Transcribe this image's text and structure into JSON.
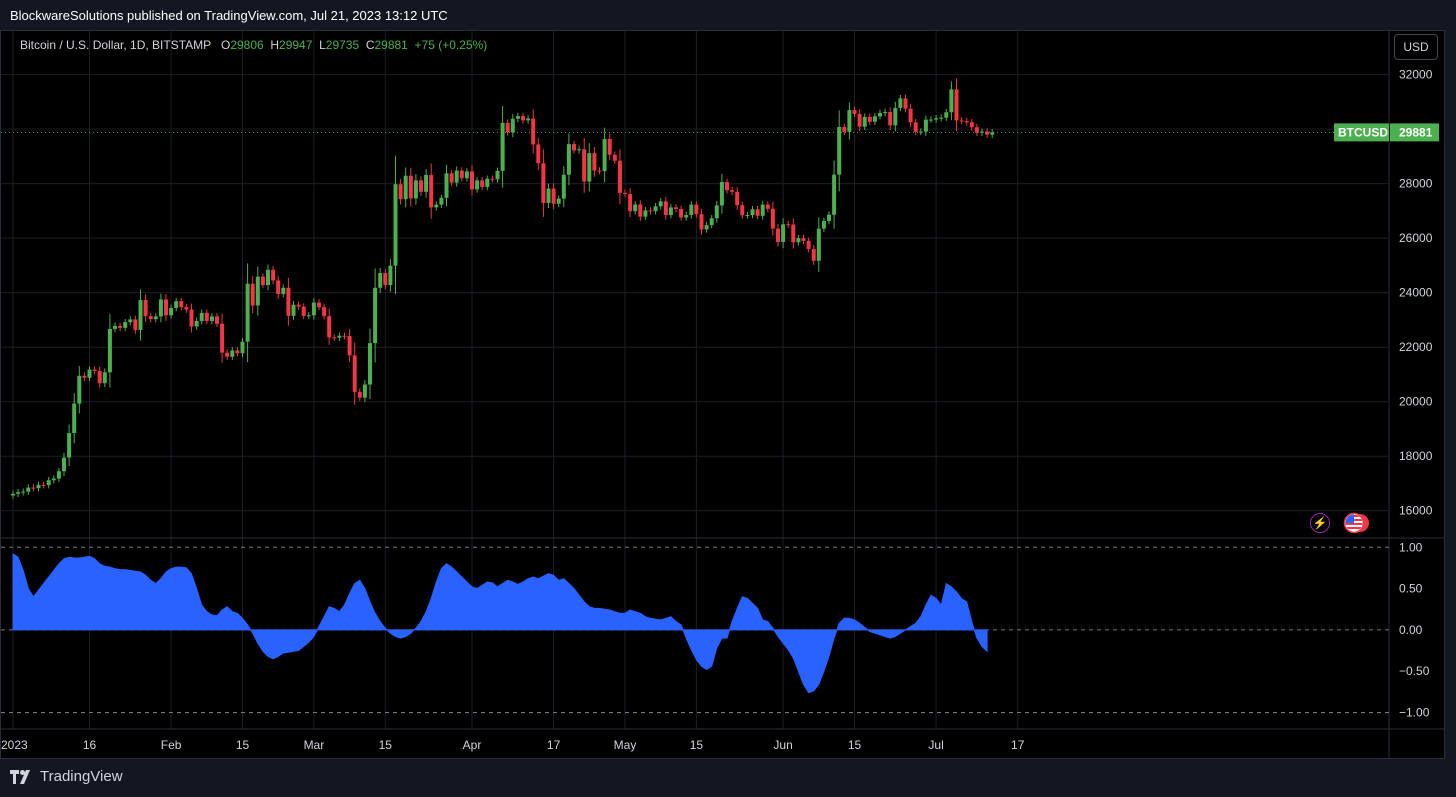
{
  "header": {
    "publisher": "BlockwareSolutions published on TradingView.com, Jul 21, 2023 13:12 UTC"
  },
  "legend": {
    "symbol": "Bitcoin / U.S. Dollar, 1D, BITSTAMP",
    "o_label": "O",
    "o_value": "29806",
    "h_label": "H",
    "h_value": "29947",
    "l_label": "L",
    "l_value": "29735",
    "c_label": "C",
    "c_value": "29881",
    "change": "+75 (+0.25%)"
  },
  "toolbar": {
    "currency": "USD"
  },
  "price_tag": {
    "ticker": "BTCUSD",
    "value": "29881"
  },
  "footer": {
    "brand": "TradingView"
  },
  "colors": {
    "up": "#4caf50",
    "down": "#f23645",
    "oscillator": "#2962ff",
    "grid": "#1c1f26",
    "axis_text": "#d1d4dc"
  },
  "icons": [
    "lightning-icon",
    "us-flag-icon",
    "tradingview-logo-icon"
  ],
  "chart_data": [
    {
      "type": "candlestick",
      "symbol": "BTCUSD",
      "interval": "1D",
      "y_ticks": [
        16000,
        18000,
        20000,
        22000,
        24000,
        26000,
        28000,
        30000,
        32000
      ],
      "y_tick_labels": [
        "16000",
        "18000",
        "20000",
        "22000",
        "24000",
        "26000",
        "28000",
        "30000",
        "32000"
      ],
      "ylim": [
        15000,
        32500
      ],
      "x_tick_labels": [
        "2023",
        "16",
        "Feb",
        "15",
        "Mar",
        "15",
        "Apr",
        "17",
        "May",
        "15",
        "Jun",
        "15",
        "Jul",
        "17"
      ],
      "x_tick_dates": [
        "2023-01-01",
        "2023-01-16",
        "2023-02-01",
        "2023-02-15",
        "2023-03-01",
        "2023-03-15",
        "2023-04-01",
        "2023-04-17",
        "2023-05-01",
        "2023-05-15",
        "2023-06-01",
        "2023-06-15",
        "2023-07-01",
        "2023-07-17"
      ],
      "start_date": "2023-01-01",
      "close": [
        16620,
        16680,
        16700,
        16850,
        16830,
        16950,
        16940,
        17120,
        17180,
        17450,
        17950,
        18850,
        19930,
        20950,
        20880,
        21180,
        21130,
        20680,
        21080,
        22670,
        22780,
        22710,
        22920,
        23020,
        22630,
        23730,
        23140,
        23030,
        23130,
        23750,
        23170,
        23440,
        23690,
        23470,
        23380,
        22760,
        22960,
        23260,
        22960,
        23130,
        22860,
        21800,
        21650,
        21880,
        21780,
        22200,
        24330,
        23530,
        24590,
        24280,
        24840,
        24450,
        23950,
        24180,
        23150,
        23560,
        23490,
        23150,
        23170,
        23640,
        23470,
        23140,
        22360,
        22350,
        22420,
        22410,
        21700,
        20360,
        20150,
        20630,
        22150,
        24180,
        24720,
        24280,
        24990,
        27980,
        27430,
        28290,
        27460,
        28120,
        27700,
        28320,
        27130,
        27230,
        27480,
        28380,
        28040,
        28480,
        28200,
        28450,
        27790,
        28120,
        27880,
        28180,
        28160,
        28470,
        30230,
        29880,
        30380,
        30480,
        30320,
        30390,
        29440,
        28750,
        27290,
        27820,
        27260,
        27450,
        28330,
        29450,
        29220,
        29260,
        28080,
        29120,
        28480,
        28460,
        29640,
        29060,
        28840,
        27660,
        27620,
        26990,
        27240,
        26790,
        27020,
        26990,
        27170,
        27350,
        26850,
        27130,
        27070,
        26760,
        26850,
        27230,
        26880,
        26320,
        26480,
        26730,
        27200,
        28060,
        27760,
        27700,
        27210,
        26840,
        26850,
        27060,
        26820,
        27230,
        27080,
        26350,
        25860,
        26510,
        26500,
        25850,
        26000,
        25900,
        25600,
        25170,
        26350,
        26630,
        26860,
        28330,
        30080,
        29900,
        30700,
        30560,
        30090,
        30450,
        30270,
        30470,
        30590,
        30630,
        30140,
        30780,
        31130,
        30750,
        30250,
        29900,
        29910,
        30350,
        30350,
        30400,
        30420,
        30620,
        31460,
        30320,
        30300,
        30250,
        30070,
        29870,
        29910,
        29800,
        29881
      ]
    },
    {
      "type": "area",
      "name": "oscillator",
      "y_ticks": [
        1.0,
        0.5,
        0.0,
        -0.5,
        -1.0
      ],
      "y_tick_labels": [
        "1.00",
        "0.50",
        "0.00",
        "−0.50",
        "−1.00"
      ],
      "ylim": [
        -1.2,
        1.1
      ],
      "reference_lines": [
        1.0,
        0.0,
        -1.0
      ],
      "values": [
        0.92,
        0.88,
        0.72,
        0.5,
        0.4,
        0.48,
        0.56,
        0.64,
        0.72,
        0.8,
        0.86,
        0.88,
        0.87,
        0.87,
        0.88,
        0.89,
        0.86,
        0.8,
        0.77,
        0.76,
        0.74,
        0.73,
        0.73,
        0.72,
        0.71,
        0.7,
        0.66,
        0.6,
        0.56,
        0.62,
        0.7,
        0.74,
        0.76,
        0.76,
        0.75,
        0.68,
        0.5,
        0.3,
        0.22,
        0.18,
        0.17,
        0.24,
        0.28,
        0.22,
        0.2,
        0.14,
        0.06,
        -0.04,
        -0.16,
        -0.26,
        -0.32,
        -0.35,
        -0.32,
        -0.28,
        -0.27,
        -0.26,
        -0.25,
        -0.2,
        -0.15,
        -0.08,
        0.04,
        0.16,
        0.28,
        0.26,
        0.22,
        0.3,
        0.44,
        0.56,
        0.6,
        0.5,
        0.34,
        0.2,
        0.1,
        0.02,
        -0.04,
        -0.08,
        -0.1,
        -0.08,
        -0.04,
        0.02,
        0.1,
        0.22,
        0.38,
        0.58,
        0.74,
        0.8,
        0.76,
        0.7,
        0.64,
        0.58,
        0.52,
        0.5,
        0.54,
        0.58,
        0.57,
        0.52,
        0.56,
        0.6,
        0.58,
        0.55,
        0.58,
        0.62,
        0.64,
        0.62,
        0.65,
        0.68,
        0.66,
        0.6,
        0.62,
        0.56,
        0.5,
        0.42,
        0.34,
        0.28,
        0.26,
        0.26,
        0.25,
        0.24,
        0.22,
        0.2,
        0.2,
        0.24,
        0.22,
        0.2,
        0.16,
        0.14,
        0.13,
        0.12,
        0.14,
        0.16,
        0.1,
        0.06,
        -0.1,
        -0.24,
        -0.36,
        -0.44,
        -0.48,
        -0.44,
        -0.22,
        -0.1,
        -0.1,
        0.1,
        0.26,
        0.4,
        0.38,
        0.32,
        0.26,
        0.12,
        0.1,
        0.02,
        -0.08,
        -0.16,
        -0.24,
        -0.34,
        -0.5,
        -0.66,
        -0.76,
        -0.74,
        -0.66,
        -0.5,
        -0.32,
        -0.1,
        0.08,
        0.14,
        0.14,
        0.12,
        0.08,
        0.03,
        -0.02,
        -0.04,
        -0.06,
        -0.08,
        -0.1,
        -0.08,
        -0.04,
        0.0,
        0.04,
        0.08,
        0.16,
        0.3,
        0.42,
        0.38,
        0.3,
        0.56,
        0.52,
        0.46,
        0.38,
        0.34,
        0.1,
        -0.1,
        -0.2,
        -0.26
      ]
    }
  ]
}
